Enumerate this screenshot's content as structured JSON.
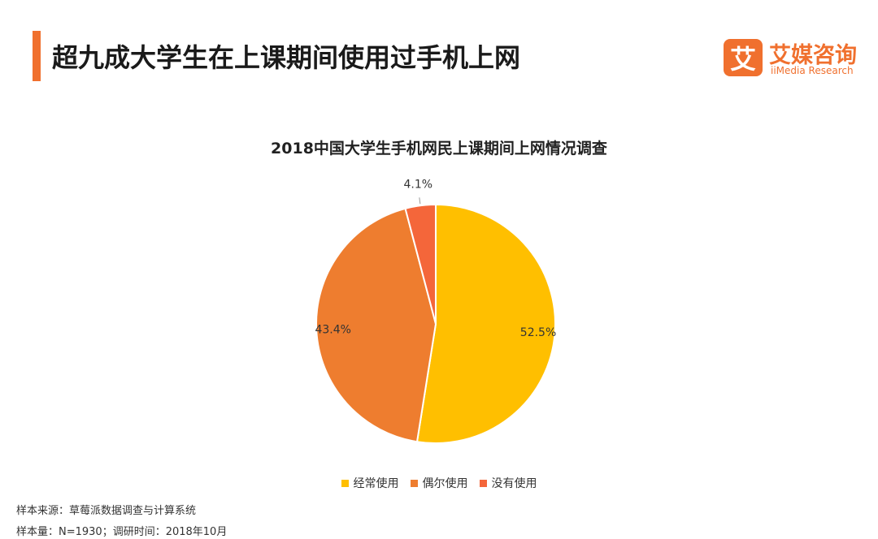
{
  "header": {
    "title": "超九成大学生在上课期间使用过手机上网",
    "accent_color": "#F0702E"
  },
  "brand": {
    "icon_char": "艾",
    "name": "艾媒咨询",
    "subtitle": "iiMedia Research",
    "color": "#F0702E"
  },
  "chart_data": {
    "type": "pie",
    "title": "2018中国大学生手机网民上课期间上网情况调查",
    "unit": "%",
    "start_angle_deg": 0,
    "direction": "clockwise",
    "slices": [
      {
        "name": "经常使用",
        "value": 52.5,
        "label": "52.5%",
        "color": "#FFBF00"
      },
      {
        "name": "偶尔使用",
        "value": 43.4,
        "label": "43.4%",
        "color": "#EE7D2F"
      },
      {
        "name": "没有使用",
        "value": 4.1,
        "label": "4.1%",
        "color": "#F4663A"
      }
    ],
    "legend_position": "bottom"
  },
  "footer": {
    "source": "样本来源：草莓派数据调查与计算系统",
    "sample": "样本量：N=1930；调研时间：2018年10月"
  }
}
